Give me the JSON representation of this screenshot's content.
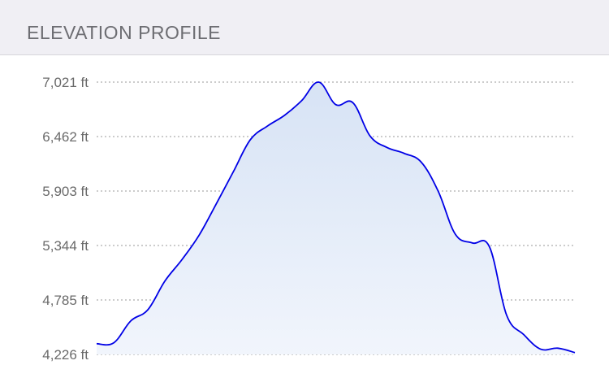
{
  "header": {
    "title": "ELEVATION PROFILE"
  },
  "chart_data": {
    "type": "area",
    "title": "ELEVATION PROFILE",
    "xlabel": "",
    "ylabel": "",
    "y_unit": "ft",
    "ylim": [
      4226,
      7021
    ],
    "y_ticks": [
      4226,
      4785,
      5344,
      5903,
      6462,
      7021
    ],
    "y_tick_labels": [
      "4,226 ft",
      "4,785 ft",
      "5,344 ft",
      "5,903 ft",
      "6,462 ft",
      "7,021 ft"
    ],
    "grid": true,
    "legend": "none",
    "series": [
      {
        "values": [
          4336,
          4345,
          4570,
          4685,
          4980,
          5200,
          5450,
          5770,
          6100,
          6430,
          6570,
          6680,
          6830,
          7021,
          6790,
          6810,
          6470,
          6350,
          6290,
          6200,
          5900,
          5460,
          5370,
          5330,
          4630,
          4430,
          4280,
          4290,
          4245
        ]
      }
    ],
    "colors": {
      "line": "#0000e6",
      "fill_top": "#d7e3f5",
      "fill_bottom": "#f1f5fc",
      "grid": "#9a9a9a"
    }
  }
}
